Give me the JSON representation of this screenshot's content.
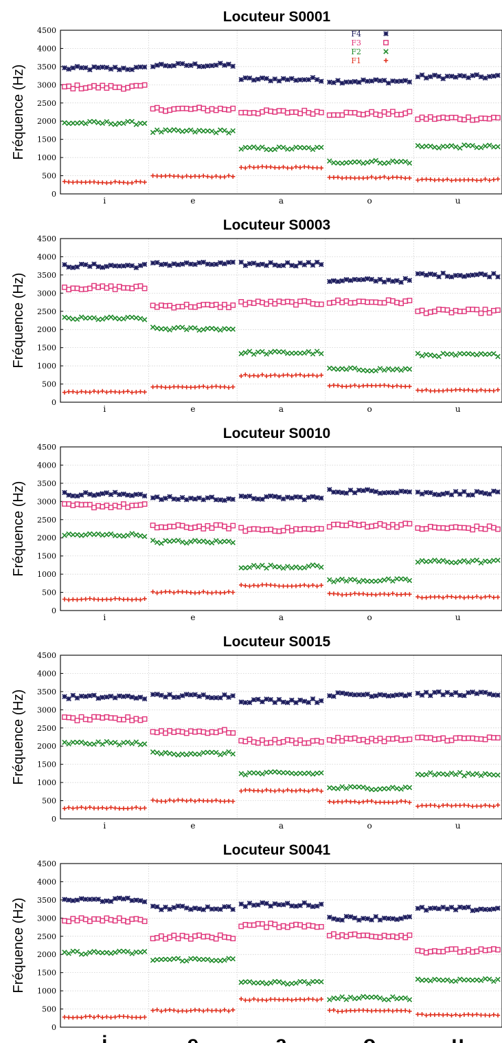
{
  "figure": {
    "ylabel": "Fréquence (Hz)"
  },
  "legend": [
    {
      "name": "F4",
      "color": "#1c1c5c",
      "marker": "star"
    },
    {
      "name": "F3",
      "color": "#e0357a",
      "marker": "square"
    },
    {
      "name": "F2",
      "color": "#1f8a2a",
      "marker": "cross"
    },
    {
      "name": "F1",
      "color": "#e0301e",
      "marker": "plus"
    }
  ],
  "chart_data": [
    {
      "type": "scatter",
      "title": "Locuteur S0001",
      "xlabel": "",
      "ylabel": "Fréquence (Hz)",
      "ylim": [
        0,
        4500
      ],
      "yticks": [
        0,
        500,
        1000,
        1500,
        2000,
        2500,
        3000,
        3500,
        4000,
        4500
      ],
      "categories": [
        "i",
        "e",
        "a",
        "o",
        "u"
      ],
      "grid": true,
      "legend_position": "top-right",
      "series": [
        {
          "name": "F4",
          "color": "#1c1c5c",
          "values": [
            3450,
            3540,
            3150,
            3100,
            3220
          ]
        },
        {
          "name": "F3",
          "color": "#e0357a",
          "values": [
            2940,
            2330,
            2250,
            2210,
            2080
          ]
        },
        {
          "name": "F2",
          "color": "#1f8a2a",
          "values": [
            1950,
            1720,
            1250,
            880,
            1300
          ]
        },
        {
          "name": "F1",
          "color": "#e0301e",
          "values": [
            320,
            480,
            730,
            450,
            390
          ]
        }
      ]
    },
    {
      "type": "scatter",
      "title": "Locuteur S0003",
      "xlabel": "",
      "ylabel": "Fréquence (Hz)",
      "ylim": [
        0,
        4500
      ],
      "yticks": [
        0,
        500,
        1000,
        1500,
        2000,
        2500,
        3000,
        3500,
        4000,
        4500
      ],
      "categories": [
        "i",
        "e",
        "a",
        "o",
        "u"
      ],
      "grid": true,
      "series": [
        {
          "name": "F4",
          "color": "#1c1c5c",
          "values": [
            3750,
            3800,
            3800,
            3350,
            3500
          ]
        },
        {
          "name": "F3",
          "color": "#e0357a",
          "values": [
            3150,
            2650,
            2730,
            2760,
            2500
          ]
        },
        {
          "name": "F2",
          "color": "#1f8a2a",
          "values": [
            2300,
            2020,
            1360,
            900,
            1300
          ]
        },
        {
          "name": "F1",
          "color": "#e0301e",
          "values": [
            290,
            420,
            740,
            450,
            330
          ]
        }
      ]
    },
    {
      "type": "scatter",
      "title": "Locuteur S0010",
      "xlabel": "",
      "ylabel": "Fréquence (Hz)",
      "ylim": [
        0,
        4500
      ],
      "yticks": [
        0,
        500,
        1000,
        1500,
        2000,
        2500,
        3000,
        3500,
        4000,
        4500
      ],
      "categories": [
        "i",
        "e",
        "a",
        "o",
        "u"
      ],
      "grid": true,
      "series": [
        {
          "name": "F4",
          "color": "#1c1c5c",
          "values": [
            3200,
            3080,
            3100,
            3280,
            3230
          ]
        },
        {
          "name": "F3",
          "color": "#e0357a",
          "values": [
            2880,
            2300,
            2230,
            2350,
            2270
          ]
        },
        {
          "name": "F2",
          "color": "#1f8a2a",
          "values": [
            2080,
            1890,
            1210,
            830,
            1350
          ]
        },
        {
          "name": "F1",
          "color": "#e0301e",
          "values": [
            310,
            500,
            690,
            450,
            370
          ]
        }
      ]
    },
    {
      "type": "scatter",
      "title": "Locuteur S0015",
      "xlabel": "",
      "ylabel": "Fréquence (Hz)",
      "ylim": [
        0,
        4500
      ],
      "yticks": [
        0,
        500,
        1000,
        1500,
        2000,
        2500,
        3000,
        3500,
        4000,
        4500
      ],
      "categories": [
        "i",
        "e",
        "a",
        "o",
        "u"
      ],
      "grid": true,
      "series": [
        {
          "name": "F4",
          "color": "#1c1c5c",
          "values": [
            3350,
            3380,
            3250,
            3420,
            3440
          ]
        },
        {
          "name": "F3",
          "color": "#e0357a",
          "values": [
            2750,
            2400,
            2130,
            2180,
            2200
          ]
        },
        {
          "name": "F2",
          "color": "#1f8a2a",
          "values": [
            2080,
            1800,
            1250,
            850,
            1230
          ]
        },
        {
          "name": "F1",
          "color": "#e0301e",
          "values": [
            300,
            500,
            780,
            470,
            360
          ]
        }
      ]
    },
    {
      "type": "scatter",
      "title": "Locuteur S0041",
      "xlabel": "",
      "ylabel": "Fréquence (Hz)",
      "ylim": [
        0,
        4500
      ],
      "yticks": [
        0,
        500,
        1000,
        1500,
        2000,
        2500,
        3000,
        3500,
        4000,
        4500
      ],
      "categories": [
        "i",
        "e",
        "a",
        "o",
        "u"
      ],
      "grid": true,
      "series": [
        {
          "name": "F4",
          "color": "#1c1c5c",
          "values": [
            3500,
            3280,
            3370,
            3000,
            3250
          ]
        },
        {
          "name": "F3",
          "color": "#e0357a",
          "values": [
            2950,
            2480,
            2800,
            2520,
            2100
          ]
        },
        {
          "name": "F2",
          "color": "#1f8a2a",
          "values": [
            2050,
            1860,
            1220,
            800,
            1300
          ]
        },
        {
          "name": "F1",
          "color": "#e0301e",
          "values": [
            280,
            460,
            760,
            450,
            340
          ]
        }
      ]
    }
  ]
}
